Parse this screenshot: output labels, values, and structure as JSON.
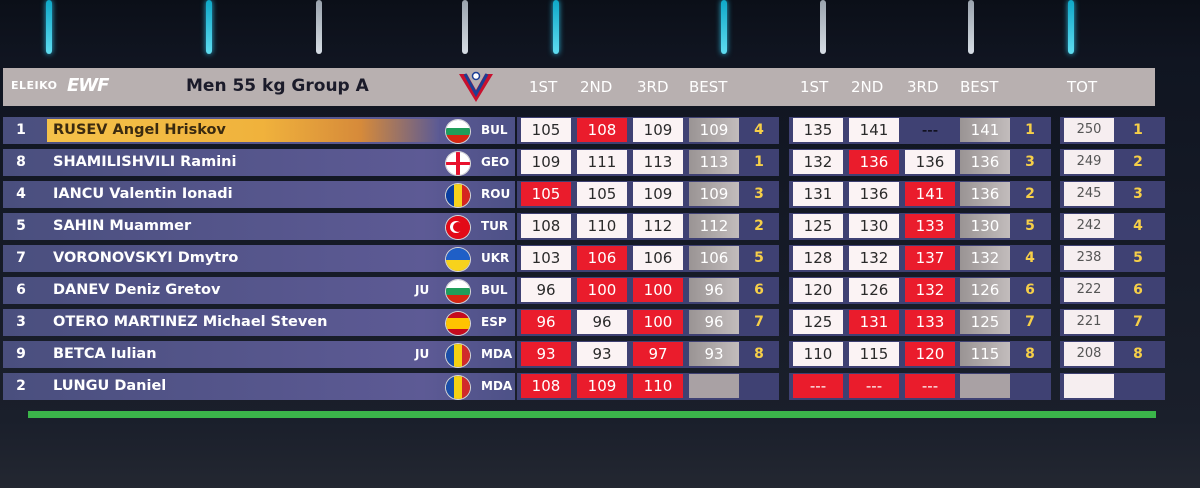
{
  "header": {
    "brand": "ELEIKO",
    "federation": "EWF",
    "title": "Men 55 kg Group A",
    "snatch_cols": [
      "1ST",
      "2ND",
      "3RD",
      "BEST"
    ],
    "cj_cols": [
      "1ST",
      "2ND",
      "3RD",
      "BEST"
    ],
    "total_col": "TOT"
  },
  "colors": {
    "good": "#fbf3f4",
    "fail": "#ea1c2c",
    "best": "#b0aaaa",
    "pending": "#f7c547",
    "rank": "#f6cf48",
    "row_bg": "#5a5890",
    "green_bar": "#3bb54a"
  },
  "rows": [
    {
      "lot": "1",
      "name": "RUSEV Angel Hriskov",
      "ju": "",
      "country": "BUL",
      "flag": "flag-bulgaria",
      "highlight": true,
      "sn": [
        [
          "105",
          "good"
        ],
        [
          "108",
          "fail"
        ],
        [
          "109",
          "good"
        ]
      ],
      "sn_best": "109",
      "sn_rank": "4",
      "cj": [
        [
          "135",
          "good"
        ],
        [
          "141",
          "good"
        ],
        [
          "---",
          "pending"
        ]
      ],
      "cj_best": "141",
      "cj_rank": "1",
      "total": "250",
      "total_rank": "1"
    },
    {
      "lot": "8",
      "name": "SHAMILISHVILI Ramini",
      "ju": "",
      "country": "GEO",
      "flag": "flag-georgia",
      "highlight": false,
      "sn": [
        [
          "109",
          "good"
        ],
        [
          "111",
          "good"
        ],
        [
          "113",
          "good"
        ]
      ],
      "sn_best": "113",
      "sn_rank": "1",
      "cj": [
        [
          "132",
          "good"
        ],
        [
          "136",
          "fail"
        ],
        [
          "136",
          "good"
        ]
      ],
      "cj_best": "136",
      "cj_rank": "3",
      "total": "249",
      "total_rank": "2"
    },
    {
      "lot": "4",
      "name": "IANCU Valentin Ionadi",
      "ju": "",
      "country": "ROU",
      "flag": "flag-romania",
      "highlight": false,
      "sn": [
        [
          "105",
          "fail"
        ],
        [
          "105",
          "good"
        ],
        [
          "109",
          "good"
        ]
      ],
      "sn_best": "109",
      "sn_rank": "3",
      "cj": [
        [
          "131",
          "good"
        ],
        [
          "136",
          "good"
        ],
        [
          "141",
          "fail"
        ]
      ],
      "cj_best": "136",
      "cj_rank": "2",
      "total": "245",
      "total_rank": "3"
    },
    {
      "lot": "5",
      "name": "SAHIN Muammer",
      "ju": "",
      "country": "TUR",
      "flag": "flag-turkey",
      "highlight": false,
      "sn": [
        [
          "108",
          "good"
        ],
        [
          "110",
          "good"
        ],
        [
          "112",
          "good"
        ]
      ],
      "sn_best": "112",
      "sn_rank": "2",
      "cj": [
        [
          "125",
          "good"
        ],
        [
          "130",
          "good"
        ],
        [
          "133",
          "fail"
        ]
      ],
      "cj_best": "130",
      "cj_rank": "5",
      "total": "242",
      "total_rank": "4"
    },
    {
      "lot": "7",
      "name": "VORONOVSKYI Dmytro",
      "ju": "",
      "country": "UKR",
      "flag": "flag-ukraine",
      "highlight": false,
      "sn": [
        [
          "103",
          "good"
        ],
        [
          "106",
          "fail"
        ],
        [
          "106",
          "good"
        ]
      ],
      "sn_best": "106",
      "sn_rank": "5",
      "cj": [
        [
          "128",
          "good"
        ],
        [
          "132",
          "good"
        ],
        [
          "137",
          "fail"
        ]
      ],
      "cj_best": "132",
      "cj_rank": "4",
      "total": "238",
      "total_rank": "5"
    },
    {
      "lot": "6",
      "name": "DANEV Deniz Gretov",
      "ju": "JU",
      "country": "BUL",
      "flag": "flag-bulgaria",
      "highlight": false,
      "sn": [
        [
          "96",
          "good"
        ],
        [
          "100",
          "fail"
        ],
        [
          "100",
          "fail"
        ]
      ],
      "sn_best": "96",
      "sn_rank": "6",
      "cj": [
        [
          "120",
          "good"
        ],
        [
          "126",
          "good"
        ],
        [
          "132",
          "fail"
        ]
      ],
      "cj_best": "126",
      "cj_rank": "6",
      "total": "222",
      "total_rank": "6"
    },
    {
      "lot": "3",
      "name": "OTERO MARTINEZ Michael Steven",
      "ju": "",
      "country": "ESP",
      "flag": "flag-spain",
      "highlight": false,
      "sn": [
        [
          "96",
          "fail"
        ],
        [
          "96",
          "good"
        ],
        [
          "100",
          "fail"
        ]
      ],
      "sn_best": "96",
      "sn_rank": "7",
      "cj": [
        [
          "125",
          "good"
        ],
        [
          "131",
          "fail"
        ],
        [
          "133",
          "fail"
        ]
      ],
      "cj_best": "125",
      "cj_rank": "7",
      "total": "221",
      "total_rank": "7"
    },
    {
      "lot": "9",
      "name": "BETCA Iulian",
      "ju": "JU",
      "country": "MDA",
      "flag": "flag-moldova",
      "highlight": false,
      "sn": [
        [
          "93",
          "fail"
        ],
        [
          "93",
          "good"
        ],
        [
          "97",
          "fail"
        ]
      ],
      "sn_best": "93",
      "sn_rank": "8",
      "cj": [
        [
          "110",
          "good"
        ],
        [
          "115",
          "good"
        ],
        [
          "120",
          "fail"
        ]
      ],
      "cj_best": "115",
      "cj_rank": "8",
      "total": "208",
      "total_rank": "8"
    },
    {
      "lot": "2",
      "name": "LUNGU Daniel",
      "ju": "",
      "country": "MDA",
      "flag": "flag-moldova",
      "highlight": false,
      "sn": [
        [
          "108",
          "fail"
        ],
        [
          "109",
          "fail"
        ],
        [
          "110",
          "fail"
        ]
      ],
      "sn_best": "",
      "sn_rank": "",
      "cj": [
        [
          "---",
          "fail"
        ],
        [
          "---",
          "fail"
        ],
        [
          "---",
          "fail"
        ]
      ],
      "cj_best": "",
      "cj_rank": "",
      "total": "",
      "total_rank": ""
    }
  ]
}
